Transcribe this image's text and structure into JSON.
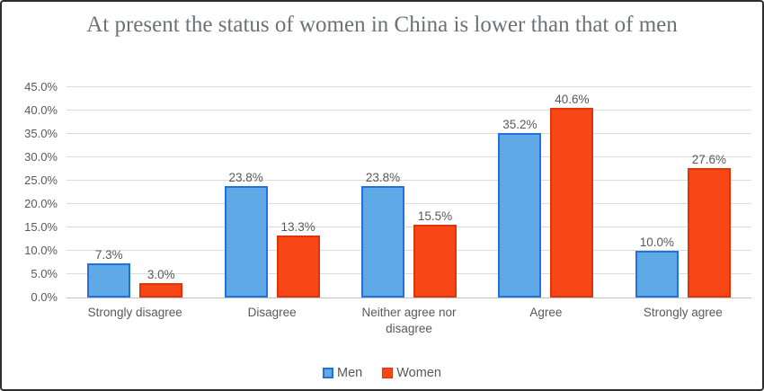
{
  "chart_data": {
    "type": "bar",
    "title": "At present the status of women in China is lower than that of men",
    "categories": [
      "Strongly disagree",
      "Disagree",
      "Neither agree nor disagree",
      "Agree",
      "Strongly agree"
    ],
    "series": [
      {
        "name": "Men",
        "values": [
          7.3,
          23.8,
          23.8,
          35.2,
          10.0
        ],
        "labels": [
          "7.3%",
          "23.8%",
          "23.8%",
          "35.2%",
          "10.0%"
        ],
        "fill": "#5FA9E7",
        "border": "#2372DB"
      },
      {
        "name": "Women",
        "values": [
          3.0,
          13.3,
          15.5,
          40.6,
          27.6
        ],
        "labels": [
          "3.0%",
          "13.3%",
          "15.5%",
          "40.6%",
          "27.6%"
        ],
        "fill": "#F84616",
        "border": "#E03508"
      }
    ],
    "xlabel": "",
    "ylabel": "",
    "ylim": [
      0,
      45
    ],
    "yticks": [
      0,
      5,
      10,
      15,
      20,
      25,
      30,
      35,
      40,
      45
    ],
    "ytick_labels": [
      "0.0%",
      "5.0%",
      "10.0%",
      "15.0%",
      "20.0%",
      "25.0%",
      "30.0%",
      "35.0%",
      "40.0%",
      "45.0%"
    ],
    "grid": true,
    "legend_position": "bottom"
  },
  "colors": {
    "axis_text": "#595959",
    "gridline": "#dcdcdc",
    "axis_line": "#c3c3c3",
    "title_text": "#6a7277",
    "frame_border": "#2e2e2e"
  }
}
